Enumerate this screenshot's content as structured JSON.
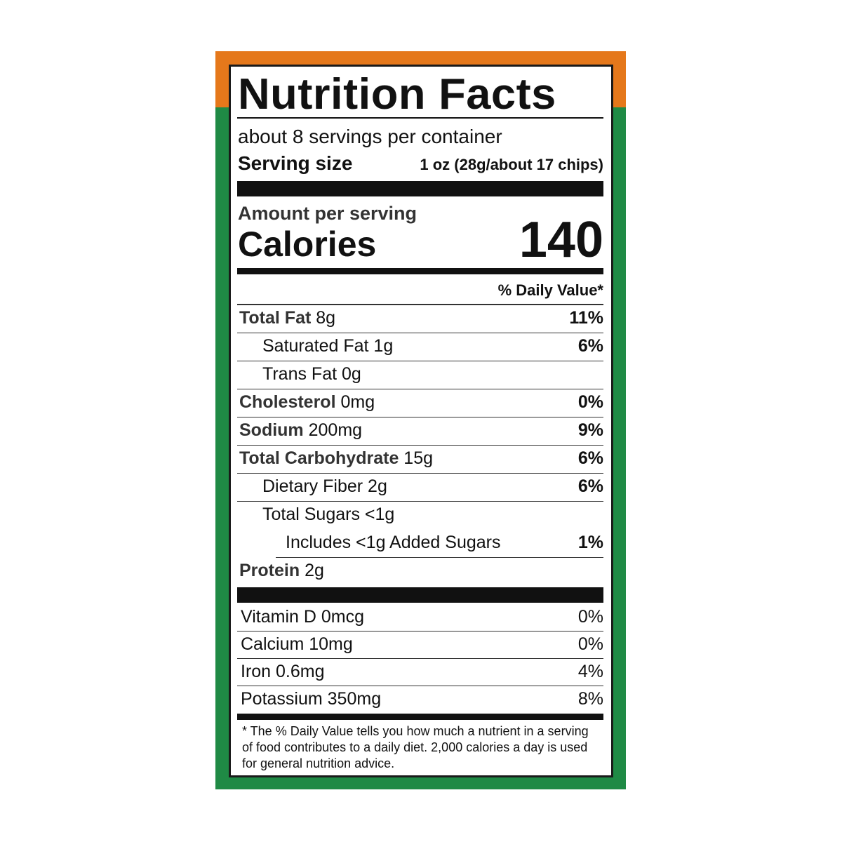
{
  "label": {
    "title": "Nutrition Facts",
    "servings_per_container": "about 8 servings per container",
    "serving_size_label": "Serving size",
    "serving_size_value": "1 oz (28g/about 17 chips)",
    "amount_per_serving": "Amount per serving",
    "calories_label": "Calories",
    "calories_value": "140",
    "daily_value_header": "% Daily Value*",
    "nutrients": [
      {
        "name": "Total Fat",
        "amount": "8g",
        "dv": "11%"
      },
      {
        "name": "Saturated Fat 1g",
        "amount": "",
        "dv": "6%"
      },
      {
        "name": "Trans Fat 0g",
        "amount": "",
        "dv": ""
      },
      {
        "name": "Cholesterol",
        "amount": "0mg",
        "dv": "0%"
      },
      {
        "name": "Sodium",
        "amount": "200mg",
        "dv": "9%"
      },
      {
        "name": "Total Carbohydrate",
        "amount": "15g",
        "dv": "6%"
      },
      {
        "name": "Dietary Fiber 2g",
        "amount": "",
        "dv": "6%"
      },
      {
        "name": "Total Sugars <1g",
        "amount": "",
        "dv": ""
      },
      {
        "name": "Includes <1g Added Sugars",
        "amount": "",
        "dv": "1%"
      },
      {
        "name": "Protein",
        "amount": "2g",
        "dv": ""
      }
    ],
    "vitamins": [
      {
        "name": "Vitamin D 0mcg",
        "dv": "0%"
      },
      {
        "name": "Calcium 10mg",
        "dv": "0%"
      },
      {
        "name": "Iron 0.6mg",
        "dv": "4%"
      },
      {
        "name": "Potassium 350mg",
        "dv": "8%"
      }
    ],
    "footnote": "* The % Daily Value tells you how much a nutrient in a serving of food contributes to a daily diet. 2,000 calories a day is used for general nutrition advice."
  },
  "colors": {
    "orange": "#e5781b",
    "green": "#1f8a45"
  }
}
